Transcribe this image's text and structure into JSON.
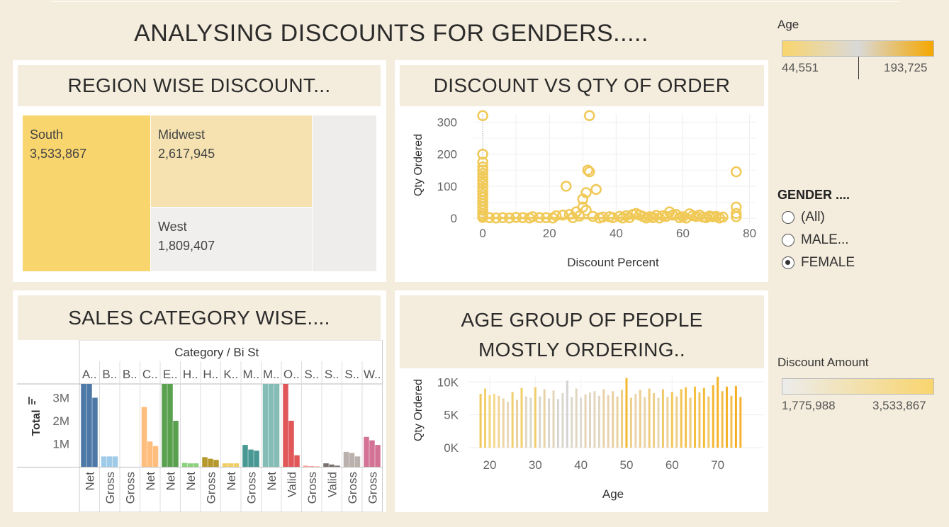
{
  "dashboard": {
    "title": "ANALYSING DISCOUNTS FOR GENDERS.....",
    "panels": {
      "region": "REGION WISE DISCOUNT...",
      "scatter": "DISCOUNT VS QTY OF ORDER",
      "category": "SALES CATEGORY WISE....",
      "age": "AGE GROUP OF PEOPLE MOSTLY ORDERING.."
    }
  },
  "age_legend": {
    "title": "Age",
    "min_label": "44,551",
    "max_label": "193,725",
    "colors": [
      "#f9d56e",
      "#d9d9d9",
      "#f5a700"
    ]
  },
  "gender_filter": {
    "title": "GENDER ....",
    "options": [
      "(All)",
      "MALE...",
      "FEMALE"
    ],
    "selected": "FEMALE"
  },
  "discount_legend": {
    "title": "Discount Amount",
    "min_label": "1,775,988",
    "max_label": "3,533,867",
    "colors": [
      "#ececec",
      "#f9d56e"
    ]
  },
  "chart_data": [
    {
      "type": "treemap",
      "cells": [
        {
          "label": "South",
          "value": "3,533,867",
          "color": "#f9d56e"
        },
        {
          "label": "Midwest",
          "value": "2,617,945",
          "color": "#f5e2b0"
        },
        {
          "label": "West",
          "value": "1,809,407",
          "color": "#f0efed"
        },
        {
          "label": "",
          "value": "",
          "color": "#eeedeb"
        }
      ]
    },
    {
      "type": "scatter",
      "xlabel": "Discount Percent",
      "ylabel": "Qty Ordered",
      "xlim": [
        -3,
        82
      ],
      "ylim": [
        -15,
        325
      ],
      "xticks": [
        0,
        20,
        40,
        60,
        80
      ],
      "yticks": [
        0,
        100,
        200,
        300
      ],
      "color": "#f0c957",
      "points": [
        [
          0,
          320
        ],
        [
          0,
          200
        ],
        [
          0,
          175
        ],
        [
          0,
          160
        ],
        [
          0,
          150
        ],
        [
          0,
          140
        ],
        [
          0,
          128
        ],
        [
          0,
          118
        ],
        [
          0,
          108
        ],
        [
          0,
          95
        ],
        [
          0,
          85
        ],
        [
          0,
          75
        ],
        [
          0,
          65
        ],
        [
          0,
          55
        ],
        [
          0,
          45
        ],
        [
          0,
          35
        ],
        [
          0,
          25
        ],
        [
          0,
          15
        ],
        [
          0,
          8
        ],
        [
          0,
          3
        ],
        [
          32,
          320
        ],
        [
          31.5,
          150
        ],
        [
          32,
          145
        ],
        [
          25,
          100
        ],
        [
          34,
          90
        ],
        [
          31,
          80
        ],
        [
          30,
          60
        ],
        [
          30,
          35
        ],
        [
          31,
          25
        ],
        [
          28,
          20
        ],
        [
          10,
          3
        ],
        [
          15,
          5
        ],
        [
          19,
          2
        ],
        [
          22,
          8
        ],
        [
          24,
          10
        ],
        [
          26,
          12
        ],
        [
          29,
          7
        ],
        [
          33,
          6
        ],
        [
          36,
          4
        ],
        [
          38,
          5
        ],
        [
          41,
          6
        ],
        [
          43,
          8
        ],
        [
          45,
          12
        ],
        [
          46,
          15
        ],
        [
          47,
          10
        ],
        [
          48,
          6
        ],
        [
          50,
          5
        ],
        [
          52,
          9
        ],
        [
          54,
          8
        ],
        [
          55,
          6
        ],
        [
          56,
          20
        ],
        [
          57,
          10
        ],
        [
          58,
          12
        ],
        [
          60,
          5
        ],
        [
          62,
          14
        ],
        [
          63,
          8
        ],
        [
          64,
          6
        ],
        [
          65,
          10
        ],
        [
          66,
          4
        ],
        [
          68,
          7
        ],
        [
          69,
          5
        ],
        [
          70,
          6
        ],
        [
          72,
          4
        ],
        [
          76,
          145
        ],
        [
          76,
          35
        ],
        [
          76,
          15
        ],
        [
          76,
          5
        ],
        [
          2,
          2
        ],
        [
          4,
          1
        ],
        [
          6,
          2
        ],
        [
          8,
          1
        ],
        [
          12,
          2
        ],
        [
          14,
          1
        ],
        [
          17,
          2
        ],
        [
          21,
          1
        ],
        [
          27,
          2
        ],
        [
          35,
          1
        ],
        [
          39,
          2
        ],
        [
          42,
          1
        ],
        [
          44,
          2
        ],
        [
          49,
          1
        ],
        [
          51,
          2
        ],
        [
          53,
          1
        ],
        [
          59,
          2
        ],
        [
          61,
          1
        ],
        [
          67,
          2
        ],
        [
          71,
          1
        ]
      ]
    },
    {
      "type": "bar",
      "title": "Category / Bi St",
      "ylabel": "Total",
      "yticks": [
        1000000,
        2000000,
        3000000
      ],
      "ytick_labels": [
        "1M",
        "2M",
        "3M"
      ],
      "ymax": 3600000,
      "groups": [
        {
          "cat": "A..",
          "sub": "Net",
          "color": "#4e79a7",
          "values": [
            3600000,
            3600000,
            3000000
          ]
        },
        {
          "cat": "B..",
          "sub": "Gross",
          "color": "#a0cbe8",
          "values": [
            450000,
            450000,
            450000
          ]
        },
        {
          "cat": "B..",
          "sub": "Gross",
          "color": "#a0cbe8",
          "values": [
            0
          ]
        },
        {
          "cat": "C..",
          "sub": "Net",
          "color": "#ffbe7d",
          "values": [
            2600000,
            1100000,
            900000
          ]
        },
        {
          "cat": "E..",
          "sub": "Net",
          "color": "#59a14f",
          "values": [
            3600000,
            3600000,
            2000000
          ]
        },
        {
          "cat": "H..",
          "sub": "Net",
          "color": "#8cd17d",
          "values": [
            170000,
            150000,
            150000
          ]
        },
        {
          "cat": "H..",
          "sub": "Gross",
          "color": "#b6992d",
          "values": [
            420000,
            350000,
            300000
          ]
        },
        {
          "cat": "K..",
          "sub": "Net",
          "color": "#f1ce63",
          "values": [
            150000,
            150000,
            150000
          ]
        },
        {
          "cat": "M..",
          "sub": "Gross",
          "color": "#499894",
          "values": [
            950000,
            750000,
            700000
          ]
        },
        {
          "cat": "M..",
          "sub": "Net",
          "color": "#86bcb6",
          "values": [
            3600000,
            3600000,
            3600000
          ]
        },
        {
          "cat": "O..",
          "sub": "Valid",
          "color": "#e15759",
          "values": [
            3600000,
            2000000,
            500000
          ]
        },
        {
          "cat": "S..",
          "sub": "Gross",
          "color": "#ff9d9a",
          "values": [
            50000,
            30000,
            20000
          ]
        },
        {
          "cat": "S..",
          "sub": "Valid",
          "color": "#79706e",
          "values": [
            150000,
            100000,
            50000
          ]
        },
        {
          "cat": "S..",
          "sub": "Gross",
          "color": "#bab0ac",
          "values": [
            650000,
            600000,
            450000
          ]
        },
        {
          "cat": "W..",
          "sub": "Gross",
          "color": "#d37295",
          "values": [
            1300000,
            1150000,
            950000
          ]
        }
      ]
    },
    {
      "type": "bar",
      "xlabel": "Age",
      "ylabel": "Qty Ordered",
      "xlim": [
        15.5,
        80
      ],
      "ylim": [
        0,
        11000
      ],
      "xticks": [
        20,
        30,
        40,
        50,
        60,
        70
      ],
      "yticks": [
        0,
        5000,
        10000
      ],
      "ytick_labels": [
        "0K",
        "5K",
        "10K"
      ],
      "x": [
        18,
        19,
        20,
        21,
        22,
        23,
        24,
        25,
        26,
        27,
        28,
        29,
        30,
        31,
        32,
        33,
        34,
        35,
        36,
        37,
        38,
        39,
        40,
        41,
        42,
        43,
        44,
        45,
        46,
        47,
        48,
        49,
        50,
        51,
        52,
        53,
        54,
        55,
        56,
        57,
        58,
        59,
        60,
        61,
        62,
        63,
        64,
        65,
        66,
        67,
        68,
        69,
        70,
        71,
        72,
        73,
        74,
        75
      ],
      "values": [
        8200,
        9000,
        8000,
        8200,
        7900,
        7500,
        7000,
        8500,
        7300,
        9100,
        7800,
        7600,
        9200,
        7800,
        8900,
        7500,
        8700,
        7400,
        8300,
        10200,
        7700,
        9000,
        7600,
        8100,
        8400,
        8600,
        7900,
        8900,
        8000,
        8600,
        7800,
        8800,
        10600,
        7600,
        8200,
        8800,
        7700,
        9000,
        8300,
        7600,
        8900,
        7700,
        8500,
        7800,
        8900,
        9200,
        7600,
        9300,
        8400,
        9100,
        7800,
        9500,
        10800,
        8600,
        9300,
        7900,
        9400,
        7700
      ],
      "colors": [
        "#f0c95e",
        "#f2d070",
        "#f4d67c",
        "#f5d98a",
        "#f1d594",
        "#ecd5a4",
        "#e6d8b8",
        "#f0d070",
        "#e8d2a0",
        "#f3cf6a",
        "#e0d8c4",
        "#dcd7cc",
        "#f0cd6a",
        "#d9d6ce",
        "#e8d3a8",
        "#d8d6d1",
        "#e3d5b8",
        "#d6d5d3",
        "#dad7cd",
        "#d4d3d1",
        "#dcd7cb",
        "#e0d6bf",
        "#dddad2",
        "#e5d4b4",
        "#e0d7c3",
        "#e3d6bb",
        "#e0d7c3",
        "#ead2a8",
        "#e7d3ae",
        "#eacf9e",
        "#ebd2a2",
        "#f0cd84",
        "#f2b930",
        "#eed08a",
        "#e8d4ac",
        "#eccf92",
        "#e8d3ab",
        "#f0cc7a",
        "#edcf88",
        "#e7d4b0",
        "#f0c96c",
        "#ebd09a",
        "#f2c75c",
        "#edce88",
        "#f3c452",
        "#f4c24a",
        "#efcb78",
        "#f5bf40",
        "#f2c55c",
        "#f5bc38",
        "#f1c86a",
        "#f5b830",
        "#f5b42a",
        "#f3bc46",
        "#f5b22a",
        "#f3c050",
        "#f5ae22",
        "#f4b330"
      ]
    }
  ]
}
